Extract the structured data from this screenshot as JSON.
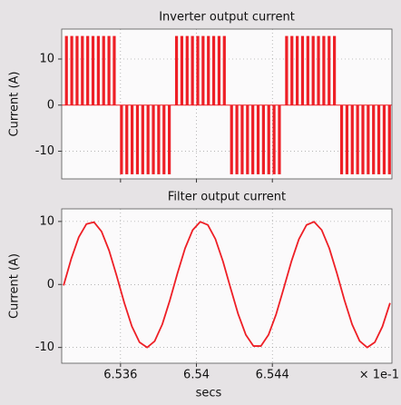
{
  "chart_data": [
    {
      "type": "stem",
      "title": "Inverter output current",
      "ylabel": "Current (A)",
      "color": "#ee1f26",
      "x": [
        6.53315,
        6.53343,
        6.53371,
        6.53399,
        6.53427,
        6.53455,
        6.53483,
        6.53511,
        6.53539,
        6.53567,
        6.53605,
        6.53633,
        6.53661,
        6.53689,
        6.53717,
        6.53745,
        6.53773,
        6.53801,
        6.53829,
        6.53857,
        6.53895,
        6.53923,
        6.53951,
        6.53979,
        6.54007,
        6.54035,
        6.54063,
        6.54091,
        6.54119,
        6.54147,
        6.54185,
        6.54213,
        6.54241,
        6.54269,
        6.54297,
        6.54325,
        6.54353,
        6.54381,
        6.54409,
        6.54437,
        6.54475,
        6.54503,
        6.54531,
        6.54559,
        6.54587,
        6.54615,
        6.54643,
        6.54671,
        6.54699,
        6.54727,
        6.54765,
        6.54793,
        6.54821,
        6.54849,
        6.54877,
        6.54905,
        6.54933,
        6.54961,
        6.54989,
        6.55017
      ],
      "values": [
        15,
        15,
        15,
        15,
        15,
        15,
        15,
        15,
        15,
        15,
        -15,
        -15,
        -15,
        -15,
        -15,
        -15,
        -15,
        -15,
        -15,
        -15,
        15,
        15,
        15,
        15,
        15,
        15,
        15,
        15,
        15,
        15,
        -15,
        -15,
        -15,
        -15,
        -15,
        -15,
        -15,
        -15,
        -15,
        -15,
        15,
        15,
        15,
        15,
        15,
        15,
        15,
        15,
        15,
        15,
        -15,
        -15,
        -15,
        -15,
        -15,
        -15,
        -15,
        -15,
        -15,
        -15
      ],
      "xlim": [
        6.5329,
        6.5503
      ],
      "xticks": [
        6.536,
        6.54,
        6.544
      ],
      "ylim": [
        -16,
        16.5
      ],
      "yticks": [
        -10,
        0,
        10
      ],
      "grid": true
    },
    {
      "type": "line",
      "title": "Filter output current",
      "ylabel": "Current (A)",
      "xlabel": "secs",
      "x_multiplier": "× 1e-1",
      "color": "#ee1f26",
      "x": [
        6.533,
        6.5334,
        6.5338,
        6.5342,
        6.5346,
        6.535,
        6.5354,
        6.5358,
        6.5362,
        6.5366,
        6.537,
        6.5374,
        6.5378,
        6.5382,
        6.5386,
        6.539,
        6.5394,
        6.5398,
        6.5402,
        6.5406,
        6.541,
        6.5414,
        6.5418,
        6.5422,
        6.5426,
        6.543,
        6.5434,
        6.5438,
        6.5442,
        6.5446,
        6.545,
        6.5454,
        6.5458,
        6.5462,
        6.5466,
        6.547,
        6.5474,
        6.5478,
        6.5482,
        6.5486,
        6.549,
        6.5494,
        6.5498,
        6.5502
      ],
      "values": [
        -0.16,
        4.04,
        7.5,
        9.58,
        9.9,
        8.41,
        5.37,
        1.34,
        -2.93,
        -6.66,
        -9.17,
        -10,
        -8.99,
        -6.33,
        -2.51,
        1.77,
        5.73,
        8.63,
        9.95,
        9.45,
        7.21,
        3.64,
        -0.59,
        -4.71,
        -7.97,
        -9.77,
        -9.77,
        -7.97,
        -4.72,
        -0.6,
        3.63,
        7.2,
        9.44,
        9.95,
        8.64,
        5.74,
        1.78,
        -2.5,
        -6.32,
        -8.98,
        -10,
        -9.17,
        -6.67,
        -2.94
      ],
      "xlim": [
        6.5329,
        6.5503
      ],
      "xticks": [
        6.536,
        6.54,
        6.544
      ],
      "ylim": [
        -12.5,
        12
      ],
      "yticks": [
        -10,
        0,
        10
      ],
      "grid": true
    }
  ]
}
